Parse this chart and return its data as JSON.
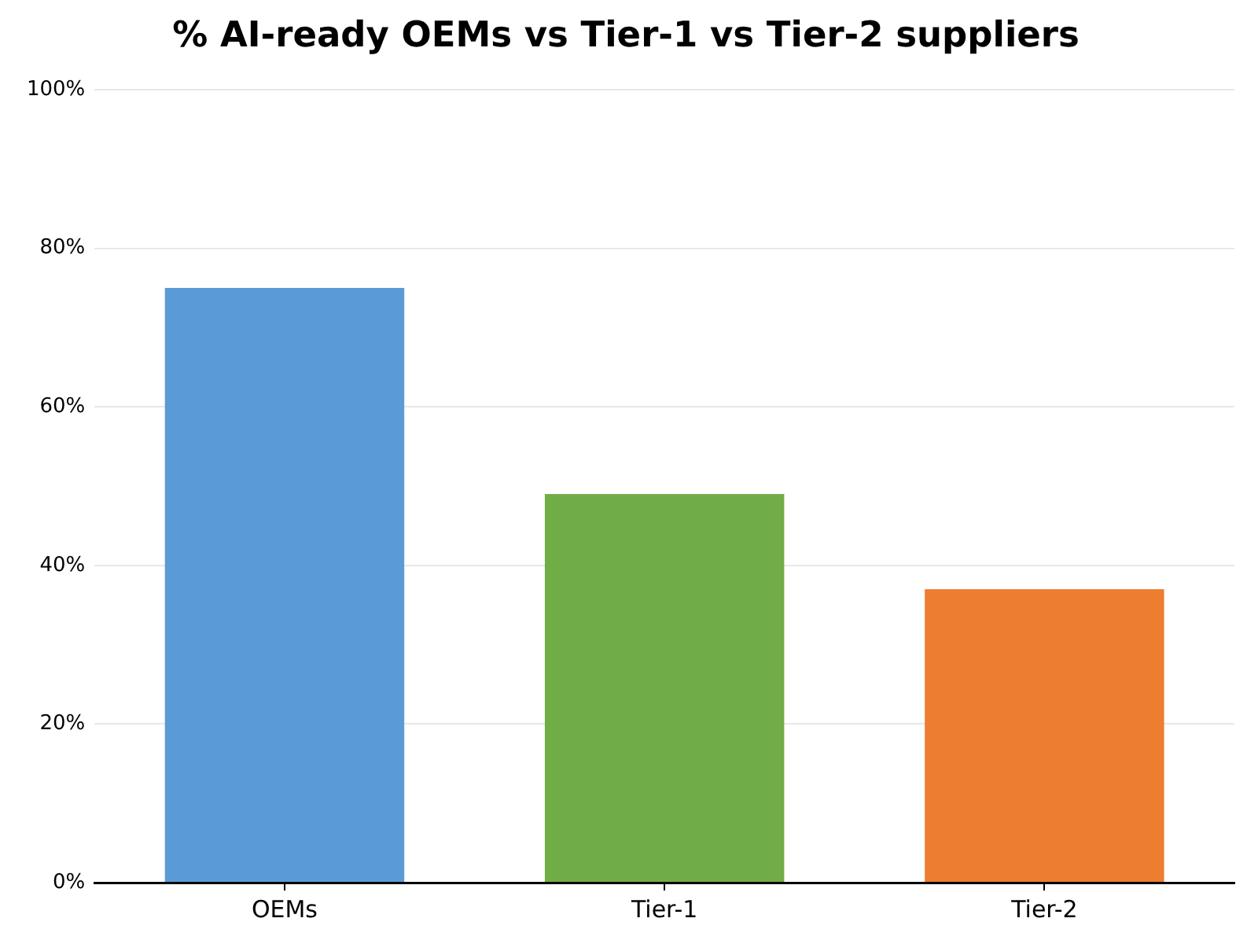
{
  "chart_data": {
    "type": "bar",
    "title": "% AI-ready OEMs vs Tier-1 vs Tier-2 suppliers",
    "categories": [
      "OEMs",
      "Tier-1",
      "Tier-2"
    ],
    "values": [
      75,
      49,
      37
    ],
    "colors": [
      "#5b9bd5",
      "#70ad47",
      "#ed7d31"
    ],
    "ylim": [
      0,
      100
    ],
    "yticks": [
      {
        "value": 0,
        "label": "0%"
      },
      {
        "value": 20,
        "label": "20%"
      },
      {
        "value": 40,
        "label": "40%"
      },
      {
        "value": 60,
        "label": "60%"
      },
      {
        "value": 80,
        "label": "80%"
      },
      {
        "value": 100,
        "label": "100%"
      }
    ],
    "grid": "y"
  }
}
